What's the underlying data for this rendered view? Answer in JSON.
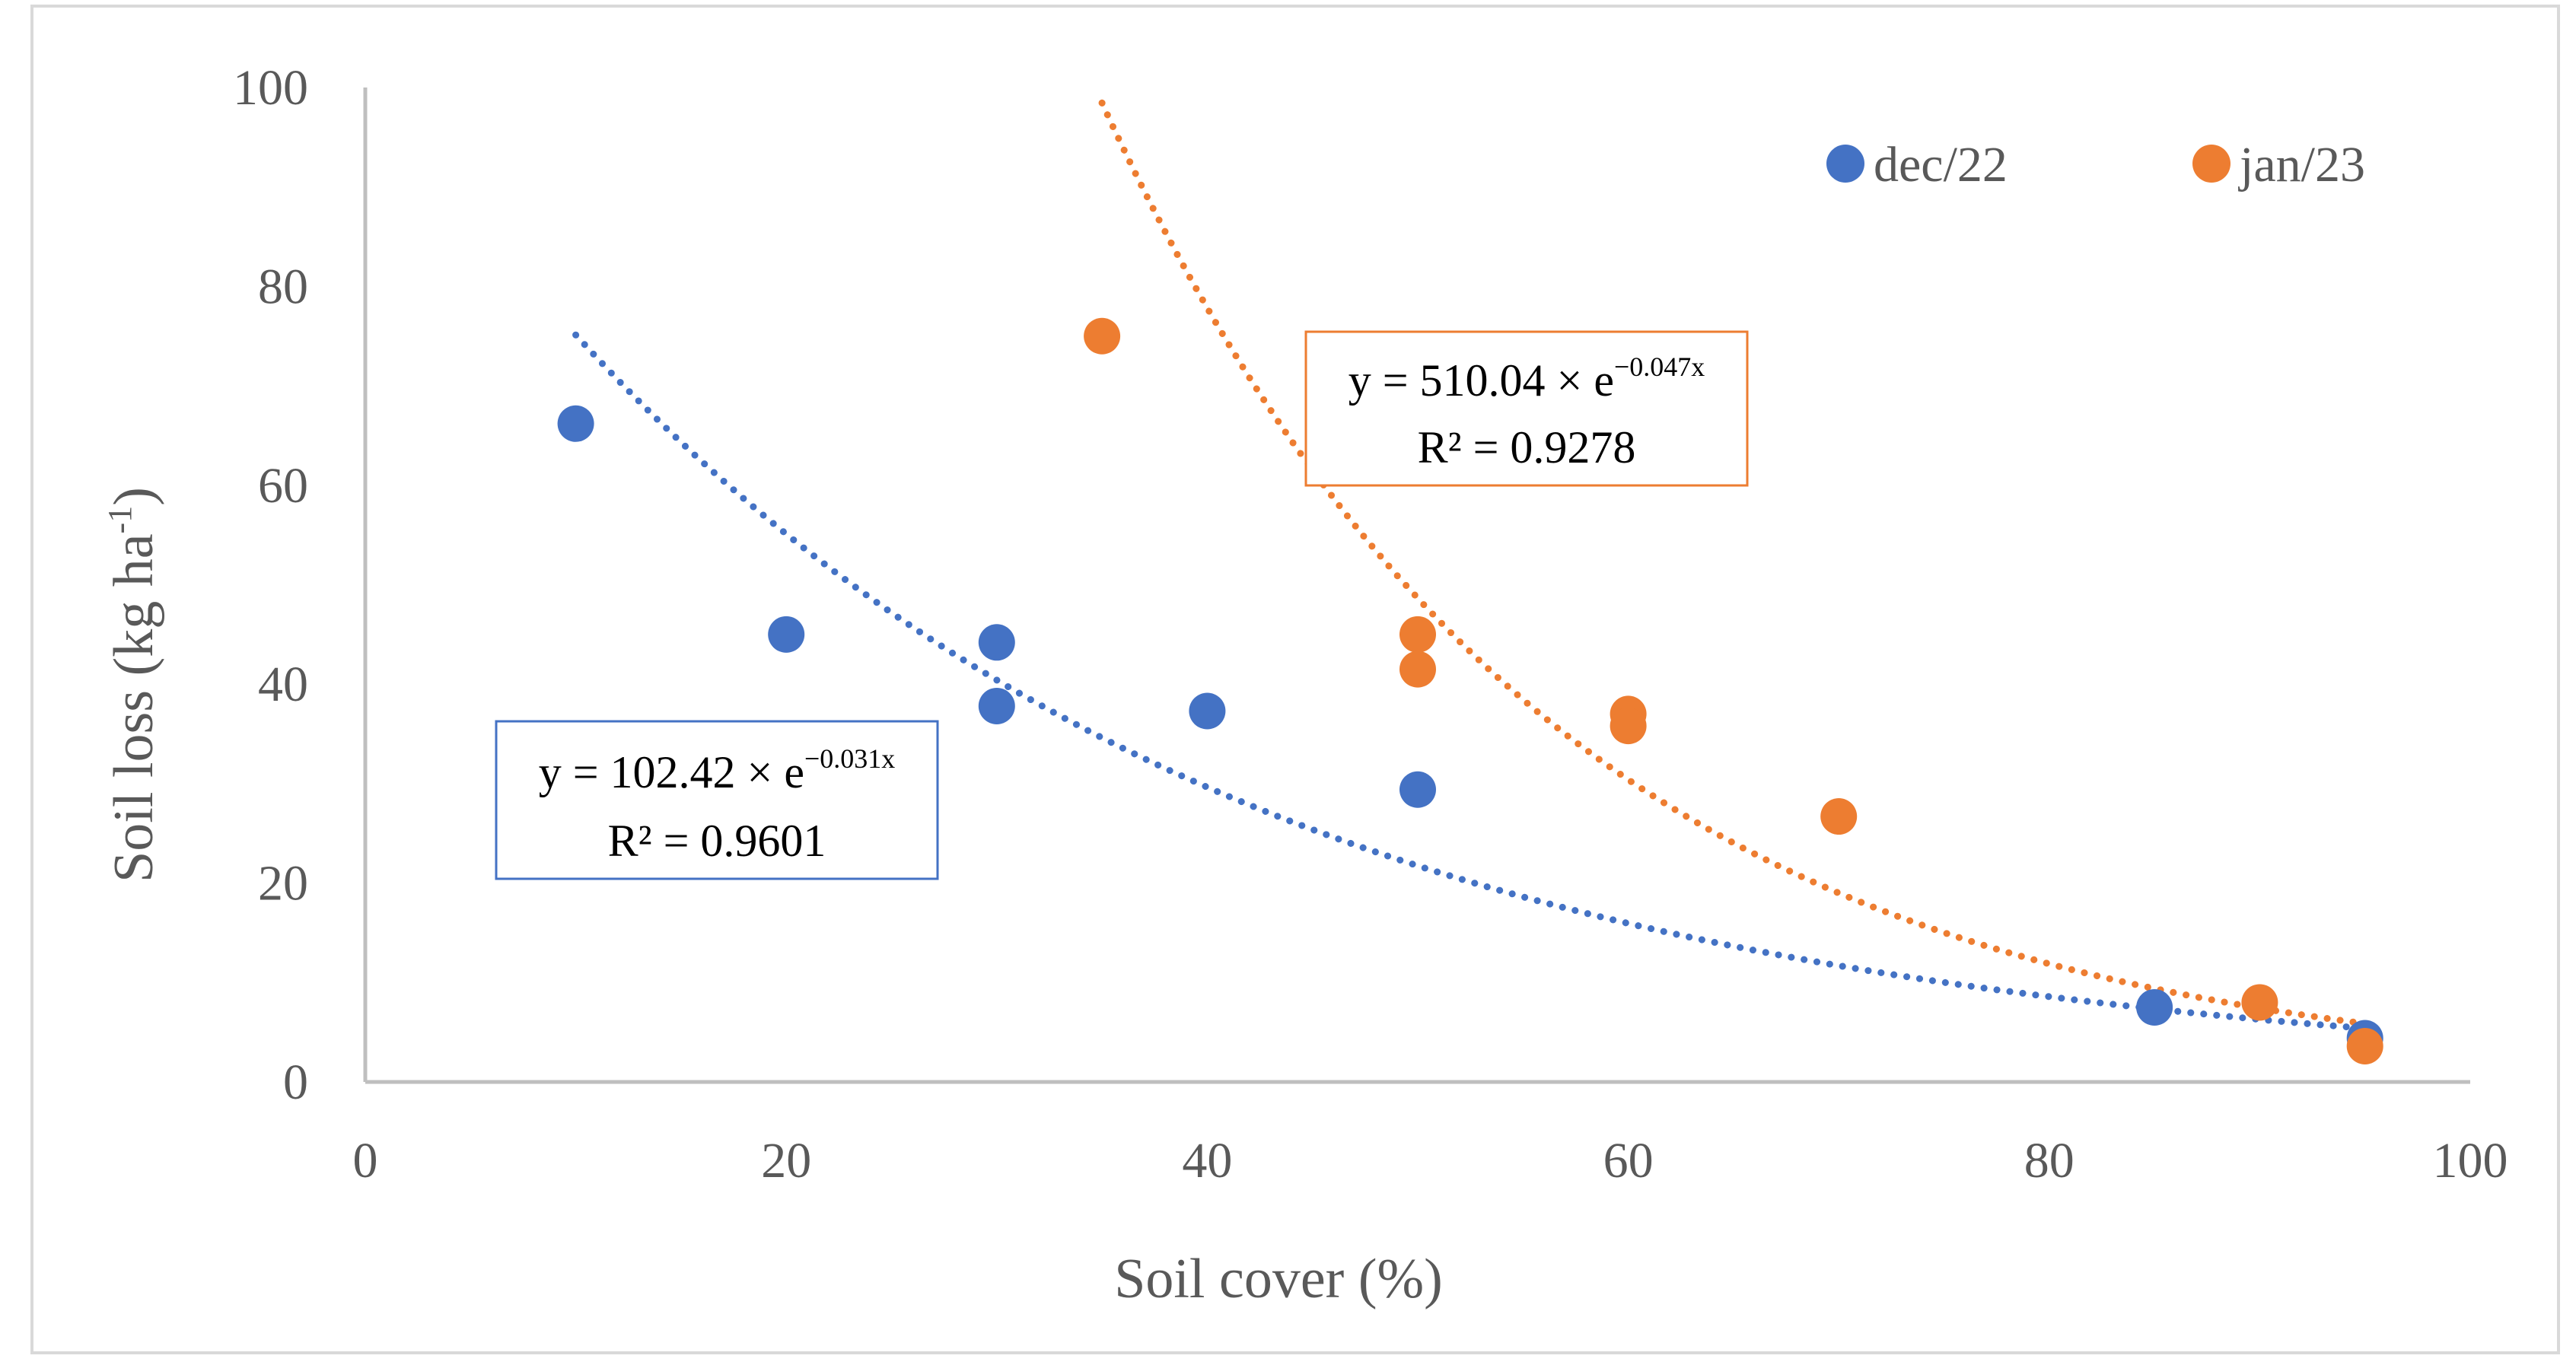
{
  "chart_data": {
    "type": "scatter",
    "title": "",
    "xlabel": "Soil cover (%)",
    "ylabel": "Soil loss (kg ha",
    "ylabel_sup": "-1",
    "ylabel_end": ")",
    "xlim": [
      0,
      100
    ],
    "ylim": [
      0,
      100
    ],
    "xticks": [
      "0",
      "20",
      "40",
      "60",
      "80",
      "100"
    ],
    "yticks": [
      "0",
      "20",
      "40",
      "60",
      "80",
      "100"
    ],
    "legend_position": "top-right",
    "series": [
      {
        "name": "dec/22",
        "color": "#4472C4",
        "points": [
          [
            10,
            66.2
          ],
          [
            20,
            45
          ],
          [
            30,
            44.2
          ],
          [
            30,
            37.8
          ],
          [
            40,
            37.3
          ],
          [
            50,
            29.4
          ],
          [
            85,
            7.5
          ],
          [
            95,
            4.4
          ]
        ],
        "trendline": {
          "type": "exponential",
          "a": 102.42,
          "b": -0.031,
          "x_range": [
            10,
            95
          ],
          "equation_prefix": "y = 102.42 × e",
          "equation_exp": "−0.031x",
          "r2_text": "R² = 0.9601"
        }
      },
      {
        "name": "jan/23",
        "color": "#ED7D31",
        "points": [
          [
            35,
            75
          ],
          [
            50,
            45
          ],
          [
            50,
            41.5
          ],
          [
            60,
            37
          ],
          [
            60,
            35.8
          ],
          [
            70,
            26.7
          ],
          [
            90,
            8
          ],
          [
            95,
            3.6
          ]
        ],
        "trendline": {
          "type": "exponential",
          "a": 510.04,
          "b": -0.047,
          "x_range": [
            35,
            95
          ],
          "equation_prefix": "y = 510.04 × e",
          "equation_exp": "−0.047x",
          "r2_text": "R² = 0.9278"
        }
      }
    ]
  }
}
